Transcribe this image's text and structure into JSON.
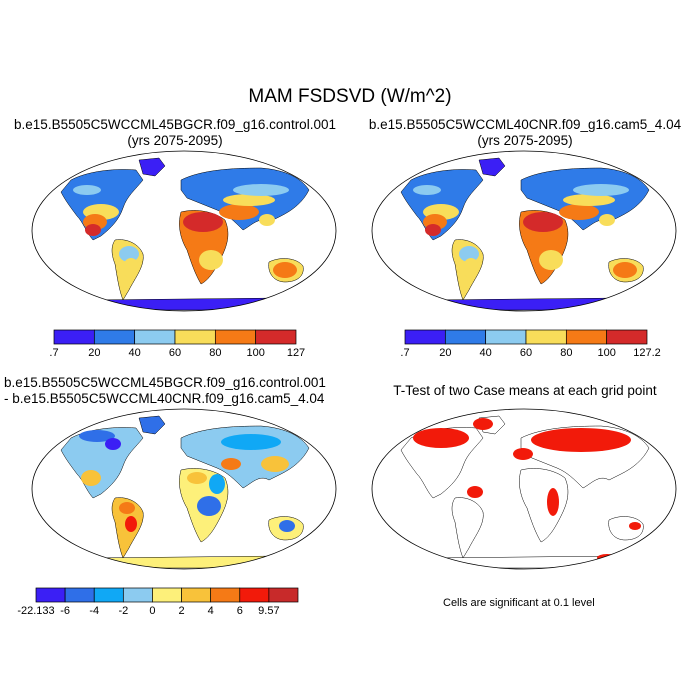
{
  "title": "MAM FSDSVD (W/m^2)",
  "panels": [
    {
      "id": "case1",
      "title_lines": [
        "b.e15.B5505C5WCCML45BGCR.f09_g16.control.001",
        "(yrs 2075-2095)"
      ],
      "colorbar": {
        "colors": [
          "#3b1ff5",
          "#2f7be8",
          "#8ccbf0",
          "#f8dd5a",
          "#f57a16",
          "#d42a2a"
        ],
        "labels": [
          ".7",
          "20",
          "40",
          "60",
          "80",
          "100",
          "127"
        ]
      }
    },
    {
      "id": "case2",
      "title_lines": [
        "b.e15.B5505C5WCCML40CNR.f09_g16.cam5_4.04",
        "(yrs 2075-2095)"
      ],
      "colorbar": {
        "colors": [
          "#3b1ff5",
          "#2f7be8",
          "#8ccbf0",
          "#f8dd5a",
          "#f57a16",
          "#d42a2a"
        ],
        "labels": [
          ".7",
          "20",
          "40",
          "60",
          "80",
          "100",
          "127.2"
        ]
      }
    },
    {
      "id": "difference",
      "title_lines": [
        "b.e15.B5505C5WCCML45BGCR.f09_g16.control.001",
        "- b.e15.B5505C5WCCML40CNR.f09_g16.cam5_4.04"
      ],
      "colorbar": {
        "colors": [
          "#3b1ff5",
          "#2f6fe8",
          "#10a8f5",
          "#8ccbf0",
          "#fdf07a",
          "#f8c23a",
          "#f57a16",
          "#f21a0a",
          "#c82a2a"
        ],
        "labels": [
          "-22.133",
          "-6",
          "-4",
          "-2",
          "0",
          "2",
          "4",
          "6",
          "9.57"
        ]
      }
    },
    {
      "id": "ttest",
      "title_lines": [
        "T-Test of two Case means at each grid point"
      ],
      "note": "Cells are significant at 0.1 level",
      "colorbar": null
    }
  ]
}
